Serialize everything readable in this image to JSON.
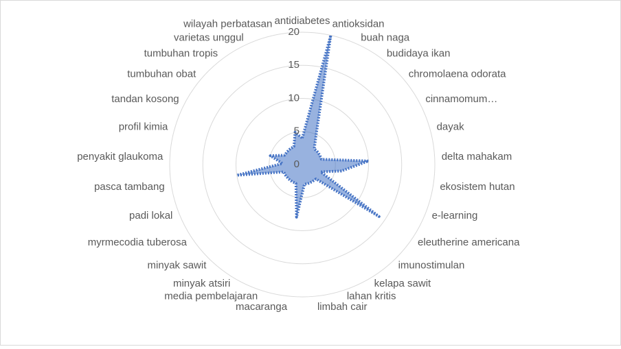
{
  "chart_data": {
    "type": "radar",
    "categories": [
      "antidiabetes",
      "antioksidan",
      "buah naga",
      "budidaya ikan",
      "chromolaena odorata",
      "cinnamomum…",
      "dayak",
      "delta mahakam",
      "ekosistem hutan",
      "e-learning",
      "eleutherine americana",
      "imunostimulan",
      "kelapa sawit",
      "lahan kritis",
      "limbah cair",
      "macaranga",
      "media pembelajaran",
      "minyak atsiri",
      "minyak sawit",
      "myrmecodia tuberosa",
      "padi lokal",
      "pasca tambang",
      "penyakit glaukoma",
      "profil kimia",
      "tandan kosong",
      "tumbuhan obat",
      "tumbuhan tropis",
      "varietas unggul",
      "wilayah perbatasan"
    ],
    "values": [
      4,
      20,
      5,
      3,
      3,
      3,
      3,
      10,
      6,
      3,
      14,
      3,
      3,
      3,
      3,
      8,
      3,
      3,
      3,
      3,
      3,
      10,
      3,
      5,
      3,
      3,
      3,
      3,
      5
    ],
    "color": "#4472c4",
    "rlim": [
      0,
      20
    ],
    "rticks": [
      0,
      5,
      10,
      15,
      20
    ],
    "grid": true
  }
}
